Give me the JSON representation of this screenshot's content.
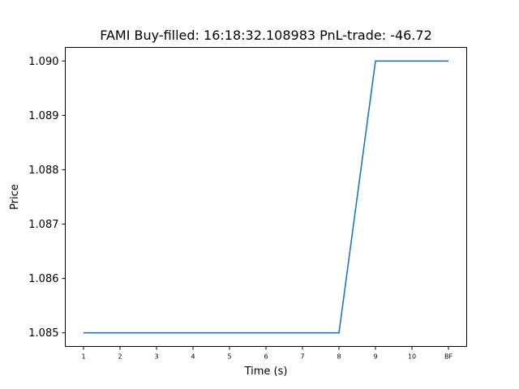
{
  "chart_data": {
    "type": "line",
    "title": "FAMI  Buy-filled:  16:18:32.108983  PnL-trade:  -46.72",
    "xlabel": "Time (s)",
    "ylabel": "Price",
    "categories": [
      "1",
      "2",
      "3",
      "4",
      "5",
      "6",
      "7",
      "8",
      "9",
      "10",
      "BF"
    ],
    "series": [
      {
        "values": [
          1.085,
          1.085,
          1.085,
          1.085,
          1.085,
          1.085,
          1.085,
          1.085,
          1.09,
          1.09,
          1.09
        ]
      }
    ],
    "ylim": [
      1.08475,
      1.09025
    ],
    "yticks": [
      "1.085",
      "1.086",
      "1.087",
      "1.088",
      "1.089",
      "1.090"
    ],
    "grid": false,
    "line_color": "#1f77b4"
  }
}
